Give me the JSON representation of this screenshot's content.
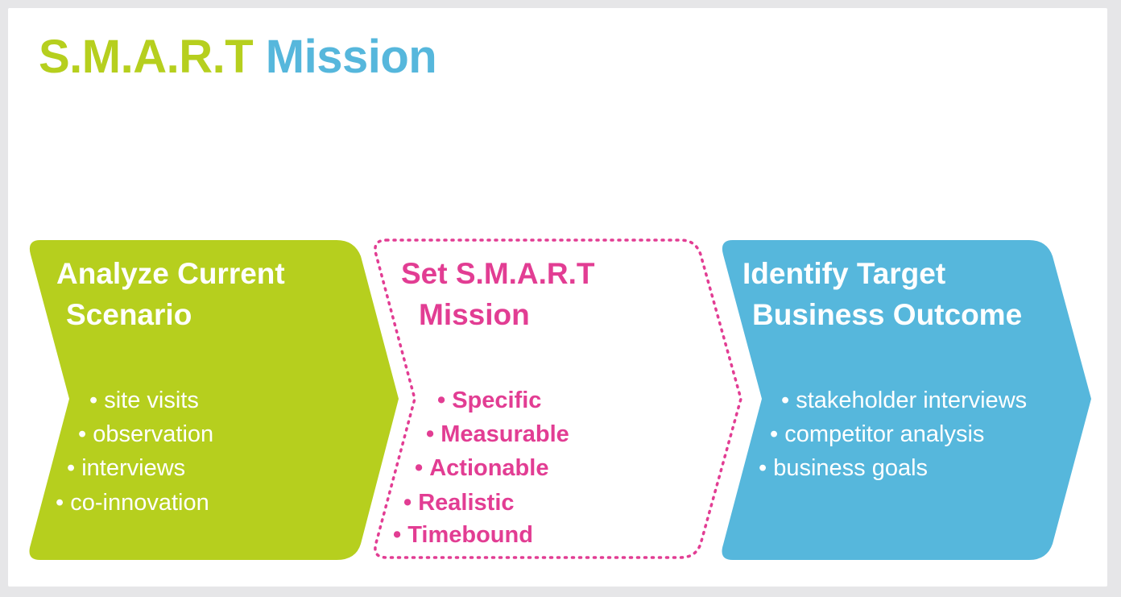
{
  "title": {
    "part1": "S.M.A.R.T",
    "part2": "Mission"
  },
  "steps": [
    {
      "heading_line1": "Analyze Current",
      "heading_line2": "Scenario",
      "bullets": [
        "site visits",
        "observation",
        "interviews",
        "co-innovation"
      ]
    },
    {
      "heading_line1": "Set S.M.A.R.T",
      "heading_line2": "Mission",
      "bullets": [
        "Specific",
        "Measurable",
        "Actionable",
        "Realistic",
        "Timebound"
      ]
    },
    {
      "heading_line1": "Identify Target",
      "heading_line2": "Business Outcome",
      "bullets": [
        "stakeholder interviews",
        "competitor analysis",
        "business goals"
      ]
    }
  ],
  "colors": {
    "green": "#b6cf1e",
    "blue": "#56b7dc",
    "pink": "#e23d93",
    "background": "#e6e6e8"
  }
}
